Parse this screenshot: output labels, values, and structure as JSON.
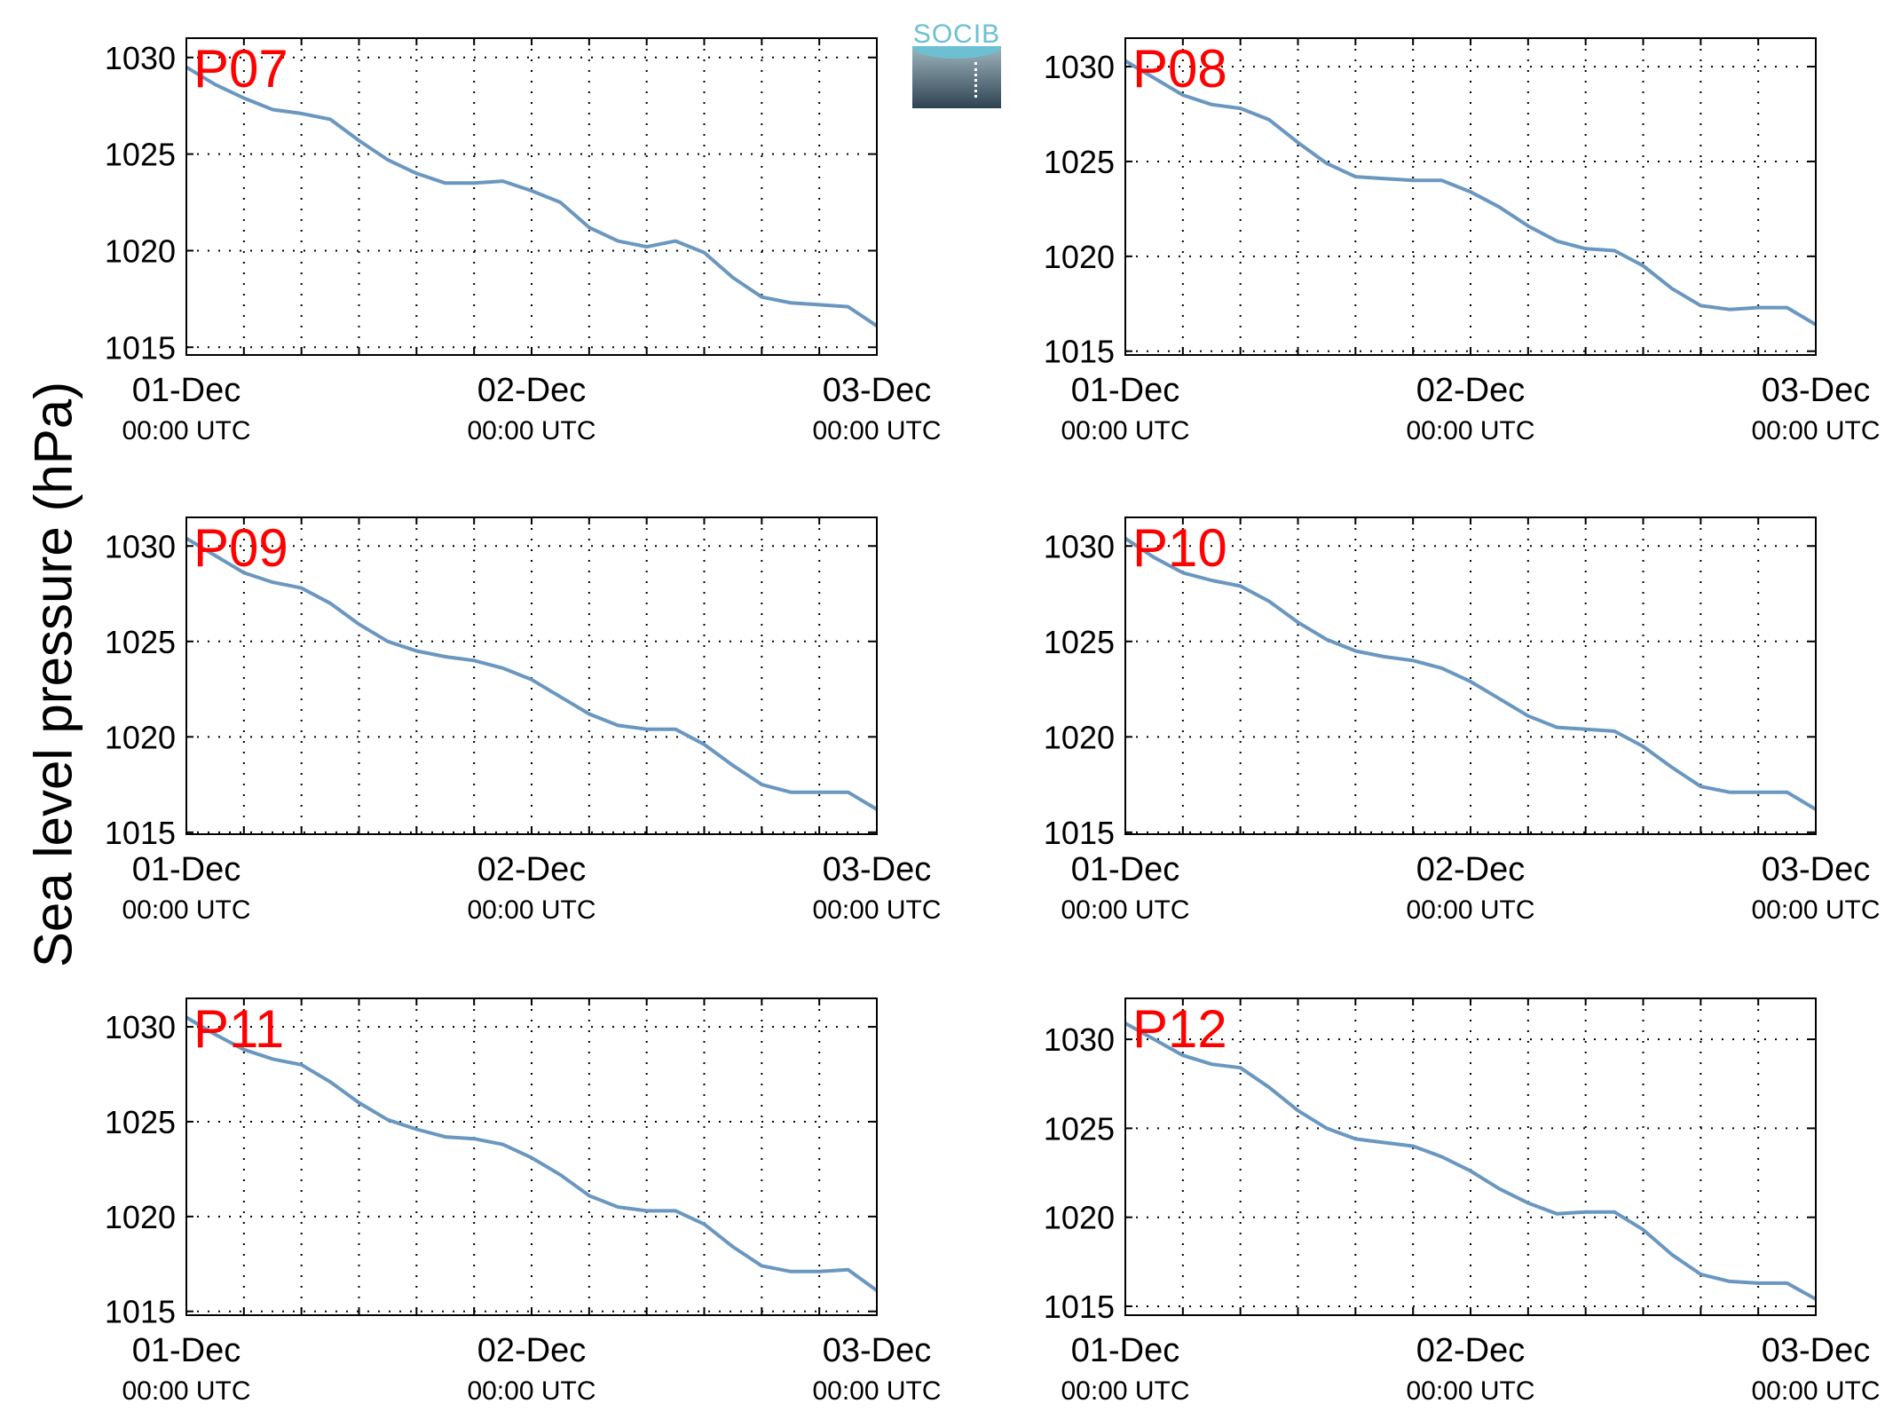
{
  "figure": {
    "ylabel": "Sea level pressure (hPa)",
    "logo_text": "SOCIB",
    "colors": {
      "line": "#6a97c0",
      "title": "#ff0000",
      "axes": "#000000",
      "grid": "#000000"
    }
  },
  "chart_data": [
    {
      "type": "line",
      "title": "P07",
      "ylim": [
        1014.6,
        1031
      ],
      "yticks": [
        1015,
        1020,
        1025,
        1030
      ],
      "xlim": [
        0,
        48
      ],
      "xticks": [
        {
          "value": 0,
          "label": "01-Dec",
          "sublabel": "00:00 UTC"
        },
        {
          "value": 24,
          "label": "02-Dec",
          "sublabel": "00:00 UTC"
        },
        {
          "value": 48,
          "label": "03-Dec",
          "sublabel": "00:00 UTC"
        }
      ],
      "grid": true,
      "series": [
        {
          "x": [
            0,
            2,
            4,
            6,
            8,
            10,
            12,
            14,
            16,
            18,
            20,
            22,
            24,
            26,
            28,
            30,
            32,
            34,
            36,
            38,
            40,
            42,
            44,
            46,
            48
          ],
          "y": [
            1029.5,
            1028.6,
            1027.9,
            1027.3,
            1027.1,
            1026.8,
            1025.7,
            1024.7,
            1024.0,
            1023.5,
            1023.5,
            1023.6,
            1023.1,
            1022.5,
            1021.2,
            1020.5,
            1020.2,
            1020.5,
            1019.9,
            1018.6,
            1017.6,
            1017.3,
            1017.2,
            1017.1,
            1016.1
          ]
        }
      ]
    },
    {
      "type": "line",
      "title": "P08",
      "ylim": [
        1014.8,
        1031.5
      ],
      "yticks": [
        1015,
        1020,
        1025,
        1030
      ],
      "xlim": [
        0,
        48
      ],
      "xticks": [
        {
          "value": 0,
          "label": "01-Dec",
          "sublabel": "00:00 UTC"
        },
        {
          "value": 24,
          "label": "02-Dec",
          "sublabel": "00:00 UTC"
        },
        {
          "value": 48,
          "label": "03-Dec",
          "sublabel": "00:00 UTC"
        }
      ],
      "grid": true,
      "series": [
        {
          "x": [
            0,
            2,
            4,
            6,
            8,
            10,
            12,
            14,
            16,
            18,
            20,
            22,
            24,
            26,
            28,
            30,
            32,
            34,
            36,
            38,
            40,
            42,
            44,
            46,
            48
          ],
          "y": [
            1030.3,
            1029.4,
            1028.5,
            1028.0,
            1027.8,
            1027.2,
            1026.0,
            1024.9,
            1024.2,
            1024.1,
            1024.0,
            1024.0,
            1023.4,
            1022.6,
            1021.6,
            1020.8,
            1020.4,
            1020.3,
            1019.5,
            1018.3,
            1017.4,
            1017.2,
            1017.3,
            1017.3,
            1016.4
          ]
        }
      ]
    },
    {
      "type": "line",
      "title": "P09",
      "ylim": [
        1014.9,
        1031.5
      ],
      "yticks": [
        1015,
        1020,
        1025,
        1030
      ],
      "xlim": [
        0,
        48
      ],
      "xticks": [
        {
          "value": 0,
          "label": "01-Dec",
          "sublabel": "00:00 UTC"
        },
        {
          "value": 24,
          "label": "02-Dec",
          "sublabel": "00:00 UTC"
        },
        {
          "value": 48,
          "label": "03-Dec",
          "sublabel": "00:00 UTC"
        }
      ],
      "grid": true,
      "series": [
        {
          "x": [
            0,
            2,
            4,
            6,
            8,
            10,
            12,
            14,
            16,
            18,
            20,
            22,
            24,
            26,
            28,
            30,
            32,
            34,
            36,
            38,
            40,
            42,
            44,
            46,
            48
          ],
          "y": [
            1030.4,
            1029.5,
            1028.6,
            1028.1,
            1027.8,
            1027.0,
            1025.9,
            1025.0,
            1024.5,
            1024.2,
            1024.0,
            1023.6,
            1023.0,
            1022.1,
            1021.2,
            1020.6,
            1020.4,
            1020.4,
            1019.6,
            1018.5,
            1017.5,
            1017.1,
            1017.1,
            1017.1,
            1016.2
          ]
        }
      ]
    },
    {
      "type": "line",
      "title": "P10",
      "ylim": [
        1014.9,
        1031.5
      ],
      "yticks": [
        1015,
        1020,
        1025,
        1030
      ],
      "xlim": [
        0,
        48
      ],
      "xticks": [
        {
          "value": 0,
          "label": "01-Dec",
          "sublabel": "00:00 UTC"
        },
        {
          "value": 24,
          "label": "02-Dec",
          "sublabel": "00:00 UTC"
        },
        {
          "value": 48,
          "label": "03-Dec",
          "sublabel": "00:00 UTC"
        }
      ],
      "grid": true,
      "series": [
        {
          "x": [
            0,
            2,
            4,
            6,
            8,
            10,
            12,
            14,
            16,
            18,
            20,
            22,
            24,
            26,
            28,
            30,
            32,
            34,
            36,
            38,
            40,
            42,
            44,
            46,
            48
          ],
          "y": [
            1030.4,
            1029.4,
            1028.6,
            1028.2,
            1027.9,
            1027.1,
            1026.0,
            1025.1,
            1024.5,
            1024.2,
            1024.0,
            1023.6,
            1022.9,
            1022.0,
            1021.1,
            1020.5,
            1020.4,
            1020.3,
            1019.5,
            1018.4,
            1017.4,
            1017.1,
            1017.1,
            1017.1,
            1016.2
          ]
        }
      ]
    },
    {
      "type": "line",
      "title": "P11",
      "ylim": [
        1014.8,
        1031.5
      ],
      "yticks": [
        1015,
        1020,
        1025,
        1030
      ],
      "xlim": [
        0,
        48
      ],
      "xticks": [
        {
          "value": 0,
          "label": "01-Dec",
          "sublabel": "00:00 UTC"
        },
        {
          "value": 24,
          "label": "02-Dec",
          "sublabel": "00:00 UTC"
        },
        {
          "value": 48,
          "label": "03-Dec",
          "sublabel": "00:00 UTC"
        }
      ],
      "grid": true,
      "series": [
        {
          "x": [
            0,
            2,
            4,
            6,
            8,
            10,
            12,
            14,
            16,
            18,
            20,
            22,
            24,
            26,
            28,
            30,
            32,
            34,
            36,
            38,
            40,
            42,
            44,
            46,
            48
          ],
          "y": [
            1030.5,
            1029.6,
            1028.8,
            1028.3,
            1028.0,
            1027.1,
            1026.0,
            1025.1,
            1024.6,
            1024.2,
            1024.1,
            1023.8,
            1023.1,
            1022.2,
            1021.1,
            1020.5,
            1020.3,
            1020.3,
            1019.6,
            1018.4,
            1017.4,
            1017.1,
            1017.1,
            1017.2,
            1016.1
          ]
        }
      ]
    },
    {
      "type": "line",
      "title": "P12",
      "ylim": [
        1014.5,
        1032.3
      ],
      "yticks": [
        1015,
        1020,
        1025,
        1030
      ],
      "xlim": [
        0,
        48
      ],
      "xticks": [
        {
          "value": 0,
          "label": "01-Dec",
          "sublabel": "00:00 UTC"
        },
        {
          "value": 24,
          "label": "02-Dec",
          "sublabel": "00:00 UTC"
        },
        {
          "value": 48,
          "label": "03-Dec",
          "sublabel": "00:00 UTC"
        }
      ],
      "grid": true,
      "series": [
        {
          "x": [
            0,
            2,
            4,
            6,
            8,
            10,
            12,
            14,
            16,
            18,
            20,
            22,
            24,
            26,
            28,
            30,
            32,
            34,
            36,
            38,
            40,
            42,
            44,
            46,
            48
          ],
          "y": [
            1030.9,
            1030.0,
            1029.1,
            1028.6,
            1028.4,
            1027.3,
            1026.0,
            1025.0,
            1024.4,
            1024.2,
            1024.0,
            1023.4,
            1022.6,
            1021.6,
            1020.8,
            1020.2,
            1020.3,
            1020.3,
            1019.3,
            1017.9,
            1016.8,
            1016.4,
            1016.3,
            1016.3,
            1015.4
          ]
        }
      ]
    }
  ]
}
